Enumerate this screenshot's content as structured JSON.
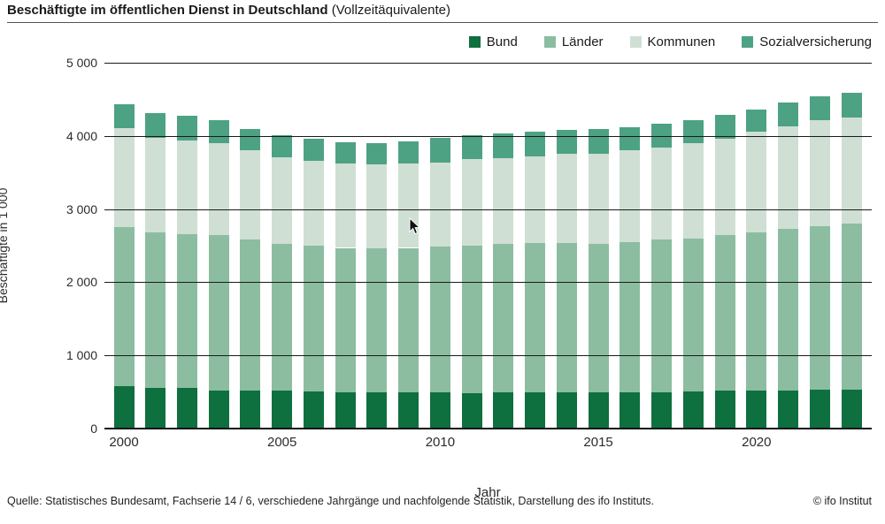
{
  "header": {
    "title_bold": "Beschäftigte im öffentlichen Dienst in Deutschland",
    "title_normal": "(Vollzeitäquivalente)"
  },
  "footer": {
    "source": "Quelle: Statistisches Bundesamt, Fachserie 14 / 6, verschiedene Jahrgänge und nachfolgende Statistik, Darstellung des ifo Instituts.",
    "copyright": "© ifo Institut"
  },
  "colors": {
    "bund": "#0e6f3f",
    "laender": "#8cbda1",
    "kommunen": "#cfdfd4",
    "sozialversicherung": "#4da283",
    "grid": "#1a1a1a"
  },
  "chart_data": {
    "type": "bar",
    "stacked": true,
    "title": "Beschäftigte im öffentlichen Dienst in Deutschland (Vollzeitäquivalente)",
    "xlabel": "Jahr",
    "ylabel": "Beschäftigte in 1 000",
    "ylim": [
      0,
      5000
    ],
    "grid": true,
    "legend_position": "top-right",
    "ytick_values": [
      0,
      1000,
      2000,
      3000,
      4000,
      5000
    ],
    "ytick_labels": [
      "0",
      "1 000",
      "2 000",
      "3 000",
      "4 000",
      "5 000"
    ],
    "xtick_labels": [
      "2000",
      "2005",
      "2010",
      "2015",
      "2020"
    ],
    "categories": [
      2000,
      2001,
      2002,
      2003,
      2004,
      2005,
      2006,
      2007,
      2008,
      2009,
      2010,
      2011,
      2012,
      2013,
      2014,
      2015,
      2016,
      2017,
      2018,
      2019,
      2020,
      2021,
      2022,
      2023
    ],
    "series": [
      {
        "name": "Bund",
        "color": "#0e6f3f",
        "values": [
          575,
          560,
          550,
          525,
          520,
          520,
          505,
          500,
          490,
          490,
          490,
          480,
          490,
          490,
          500,
          500,
          500,
          500,
          510,
          520,
          520,
          520,
          530,
          530
        ]
      },
      {
        "name": "Länder",
        "color": "#8cbda1",
        "values": [
          2175,
          2120,
          2110,
          2125,
          2070,
          2010,
          1995,
          1970,
          1970,
          1980,
          2000,
          2025,
          2030,
          2050,
          2040,
          2030,
          2050,
          2080,
          2090,
          2130,
          2160,
          2210,
          2240,
          2270
        ]
      },
      {
        "name": "Kommunen",
        "color": "#cfdfd4",
        "values": [
          1360,
          1295,
          1280,
          1250,
          1210,
          1180,
          1160,
          1150,
          1150,
          1150,
          1150,
          1175,
          1180,
          1180,
          1220,
          1230,
          1250,
          1260,
          1300,
          1310,
          1380,
          1400,
          1440,
          1450
        ]
      },
      {
        "name": "Sozialversicherung",
        "color": "#4da283",
        "values": [
          325,
          335,
          330,
          310,
          290,
          300,
          300,
          290,
          290,
          310,
          330,
          330,
          330,
          340,
          320,
          340,
          320,
          330,
          320,
          330,
          300,
          330,
          330,
          340
        ]
      }
    ]
  }
}
